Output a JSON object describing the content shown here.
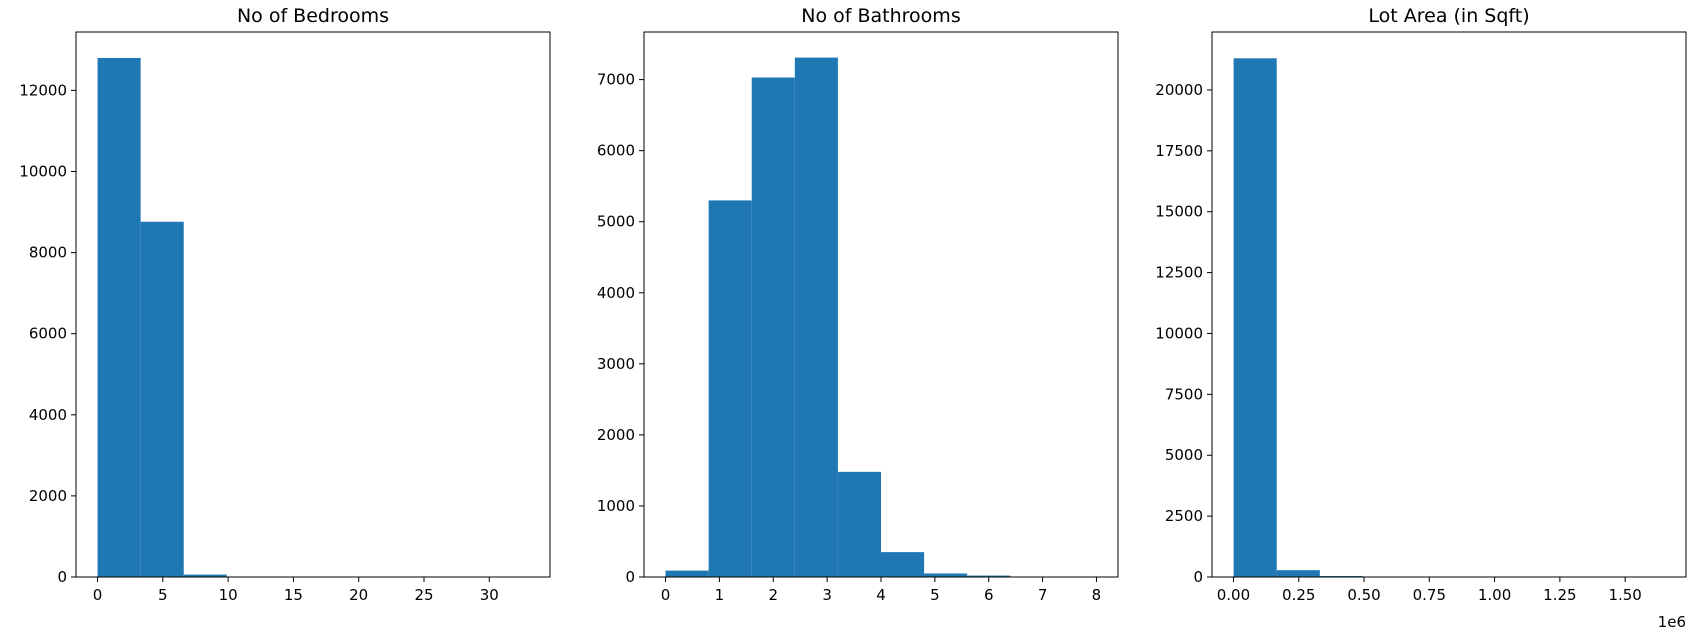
{
  "chart_data": [
    {
      "type": "bar",
      "title": "No of Bedrooms",
      "xlabel": "",
      "ylabel": "",
      "bar_color": "#1f77b4",
      "xlim": [
        -1.65,
        34.65
      ],
      "ylim": [
        0,
        13440
      ],
      "xticks": [
        0,
        5,
        10,
        15,
        20,
        25,
        30
      ],
      "yticks": [
        0,
        2000,
        4000,
        6000,
        8000,
        10000,
        12000
      ],
      "bin_edges": [
        0,
        3.3,
        6.6,
        9.9,
        13.2,
        16.5,
        19.8,
        23.1,
        26.4,
        29.7,
        33
      ],
      "values": [
        12800,
        8760,
        60,
        3,
        0,
        0,
        0,
        0,
        0,
        1
      ],
      "grid": false,
      "offset_label": ""
    },
    {
      "type": "bar",
      "title": "No of Bathrooms",
      "xlabel": "",
      "ylabel": "",
      "bar_color": "#1f77b4",
      "xlim": [
        -0.4,
        8.4
      ],
      "ylim": [
        0,
        7670
      ],
      "xticks": [
        0,
        1,
        2,
        3,
        4,
        5,
        6,
        7,
        8
      ],
      "yticks": [
        0,
        1000,
        2000,
        3000,
        4000,
        5000,
        6000,
        7000
      ],
      "bin_edges": [
        0,
        0.8,
        1.6,
        2.4,
        3.2,
        4.0,
        4.8,
        5.6,
        6.4,
        7.2,
        8.0
      ],
      "values": [
        90,
        5300,
        7030,
        7310,
        1480,
        350,
        50,
        20,
        3,
        2
      ],
      "grid": false,
      "offset_label": ""
    },
    {
      "type": "bar",
      "title": "Lot Area (in Sqft)",
      "xlabel": "",
      "ylabel": "",
      "bar_color": "#1f77b4",
      "xlim": [
        -0.0822,
        1.733
      ],
      "ylim": [
        0,
        22380
      ],
      "xticks": [
        0.0,
        0.25,
        0.5,
        0.75,
        1.0,
        1.25,
        1.5
      ],
      "xtick_labels": [
        "0.00",
        "0.25",
        "0.50",
        "0.75",
        "1.00",
        "1.25",
        "1.50"
      ],
      "yticks": [
        0,
        2500,
        5000,
        7500,
        10000,
        12500,
        15000,
        17500,
        20000
      ],
      "bin_edges": [
        0.00052,
        0.16558,
        0.33064,
        0.4957,
        0.66076,
        0.82582,
        0.99088,
        1.15594,
        1.321,
        1.48606,
        1.65112
      ],
      "values": [
        21300,
        280,
        40,
        4,
        2,
        1,
        0,
        1,
        0,
        1
      ],
      "grid": false,
      "offset_label": "1e6"
    }
  ]
}
